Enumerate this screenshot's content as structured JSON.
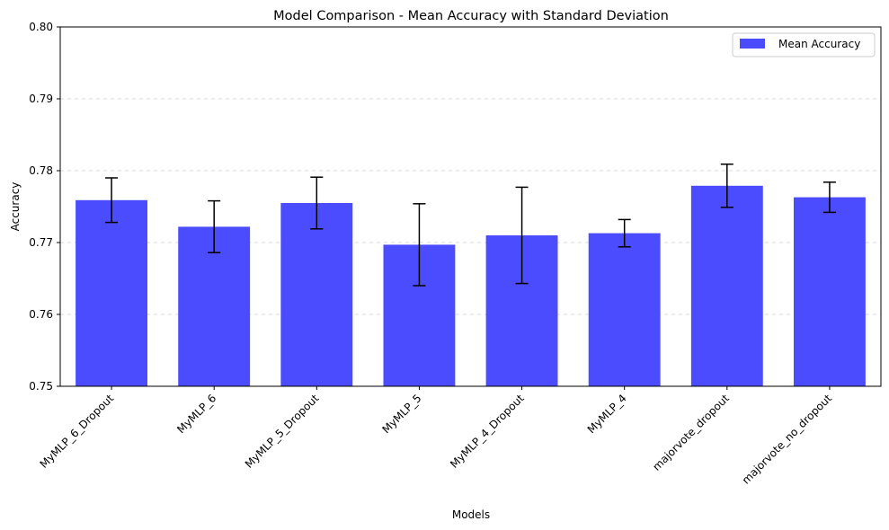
{
  "chart_data": {
    "type": "bar",
    "title": "Model Comparison - Mean Accuracy with Standard Deviation",
    "xlabel": "Models",
    "ylabel": "Accuracy",
    "ylim": [
      0.75,
      0.8
    ],
    "yticks": [
      "0.75",
      "0.76",
      "0.77",
      "0.78",
      "0.79",
      "0.80"
    ],
    "grid": "horizontal dashed",
    "legend_position": "top-right",
    "categories": [
      "MyMLP_6_Dropout",
      "MyMLP_6",
      "MyMLP_5_Dropout",
      "MyMLP_5",
      "MyMLP_4_Dropout",
      "MyMLP_4",
      "majorvote_dropout",
      "majorvote_no_dropout"
    ],
    "series": [
      {
        "name": "Mean Accuracy",
        "color": "#4c4cff",
        "values": [
          0.7759,
          0.7722,
          0.7755,
          0.7697,
          0.771,
          0.7713,
          0.7779,
          0.7763
        ],
        "error": [
          0.0031,
          0.0036,
          0.0036,
          0.0057,
          0.0067,
          0.0019,
          0.003,
          0.0021
        ]
      }
    ]
  }
}
